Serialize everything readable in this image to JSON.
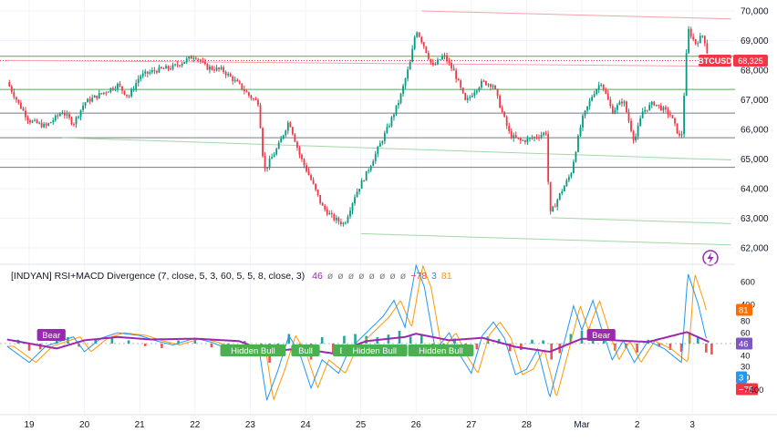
{
  "symbol": "BTCUSD",
  "last_price": "68,325",
  "colors": {
    "up": "#089981",
    "down": "#f23645",
    "grid": "#f0f3fa",
    "hline_green": "#4caf50",
    "hline_gray": "#787b86",
    "rsi_line": "#9c27b0",
    "macd_fast": "#2196f3",
    "macd_slow": "#ff9800",
    "bear_label": "#9c27b0",
    "bull_label": "#4caf50"
  },
  "indicator": {
    "title": "[INDYAN] RSI+MACD Divergence (7, close, 5, 3, 60, 5, 5, 8, close, 3)",
    "values": [
      "46",
      "ø",
      "ø",
      "ø",
      "ø",
      "ø",
      "ø",
      "ø",
      "ø",
      "−78",
      "3",
      "81"
    ],
    "value_colors": [
      "#9c27b0",
      "#787b86",
      "#787b86",
      "#787b86",
      "#787b86",
      "#787b86",
      "#787b86",
      "#787b86",
      "#787b86",
      "#f23645",
      "#2196f3",
      "#ff9800"
    ],
    "scale_labels": [
      "600",
      "400",
      "80",
      "60",
      "40",
      "30",
      "20"
    ],
    "badges": [
      {
        "text": "81",
        "color": "#ff6d00"
      },
      {
        "text": "46",
        "color": "#7e57c2"
      },
      {
        "text": "3",
        "color": "#2196f3"
      },
      {
        "text": "−78",
        "color": "#f23645"
      }
    ],
    "labels": [
      {
        "text": "Bear",
        "t": 0.4,
        "type": "bear"
      },
      {
        "text": "Hidden Bull",
        "t": 4.05,
        "type": "bull"
      },
      {
        "text": "Bull",
        "t": 5.0,
        "type": "bull"
      },
      {
        "text": "Bull",
        "t": 5.75,
        "type": "bull"
      },
      {
        "text": "Hidden Bull",
        "t": 6.25,
        "type": "bull"
      },
      {
        "text": "Hidden Bull",
        "t": 7.45,
        "type": "bull"
      },
      {
        "text": "Bear",
        "t": 10.35,
        "type": "bear"
      }
    ]
  },
  "chart_data": {
    "type": "candlestick",
    "y_ticks": [
      "70,000",
      "69,000",
      "68,000",
      "67,000",
      "66,000",
      "65,000",
      "64,000",
      "63,000",
      "62,000"
    ],
    "ylim": [
      61700,
      70150
    ],
    "x_labels": [
      {
        "t": 0.0,
        "label": "19"
      },
      {
        "t": 1.0,
        "label": "20"
      },
      {
        "t": 2.0,
        "label": "21"
      },
      {
        "t": 3.0,
        "label": "22"
      },
      {
        "t": 4.0,
        "label": "23"
      },
      {
        "t": 5.0,
        "label": "24"
      },
      {
        "t": 6.0,
        "label": "25"
      },
      {
        "t": 7.0,
        "label": "26"
      },
      {
        "t": 8.0,
        "label": "27"
      },
      {
        "t": 9.0,
        "label": "28"
      },
      {
        "t": 10.0,
        "label": "Mar"
      },
      {
        "t": 11.0,
        "label": "2"
      },
      {
        "t": 12.0,
        "label": "3"
      }
    ],
    "price_path": [
      [
        -0.4,
        67600
      ],
      [
        -0.2,
        66900
      ],
      [
        0.0,
        66300
      ],
      [
        0.3,
        66100
      ],
      [
        0.6,
        66600
      ],
      [
        0.8,
        66200
      ],
      [
        1.0,
        66900
      ],
      [
        1.3,
        67200
      ],
      [
        1.6,
        67500
      ],
      [
        1.8,
        67100
      ],
      [
        2.0,
        67800
      ],
      [
        2.3,
        68000
      ],
      [
        2.6,
        68100
      ],
      [
        2.8,
        68300
      ],
      [
        3.0,
        68500
      ],
      [
        3.2,
        68100
      ],
      [
        3.5,
        68000
      ],
      [
        3.8,
        67500
      ],
      [
        4.0,
        67100
      ],
      [
        4.15,
        66900
      ],
      [
        4.25,
        64600
      ],
      [
        4.5,
        65400
      ],
      [
        4.7,
        66300
      ],
      [
        4.9,
        65100
      ],
      [
        5.1,
        64300
      ],
      [
        5.3,
        63400
      ],
      [
        5.5,
        63000
      ],
      [
        5.7,
        62800
      ],
      [
        5.9,
        63800
      ],
      [
        6.1,
        64500
      ],
      [
        6.3,
        65300
      ],
      [
        6.5,
        66100
      ],
      [
        6.7,
        67000
      ],
      [
        6.9,
        68300
      ],
      [
        7.0,
        69400
      ],
      [
        7.15,
        68800
      ],
      [
        7.3,
        68100
      ],
      [
        7.5,
        68500
      ],
      [
        7.7,
        67900
      ],
      [
        7.9,
        66900
      ],
      [
        8.05,
        67300
      ],
      [
        8.2,
        67600
      ],
      [
        8.4,
        67500
      ],
      [
        8.5,
        66900
      ],
      [
        8.7,
        65800
      ],
      [
        8.9,
        65600
      ],
      [
        9.1,
        65700
      ],
      [
        9.35,
        65900
      ],
      [
        9.42,
        63100
      ],
      [
        9.6,
        63800
      ],
      [
        9.8,
        64500
      ],
      [
        10.0,
        66300
      ],
      [
        10.2,
        67200
      ],
      [
        10.35,
        67600
      ],
      [
        10.55,
        66600
      ],
      [
        10.75,
        67000
      ],
      [
        10.95,
        65600
      ],
      [
        11.1,
        66600
      ],
      [
        11.3,
        66900
      ],
      [
        11.6,
        66500
      ],
      [
        11.8,
        65600
      ],
      [
        11.92,
        69400
      ],
      [
        12.05,
        68900
      ],
      [
        12.2,
        69200
      ],
      [
        12.3,
        68325
      ]
    ],
    "horizontal_levels": [
      {
        "price": 68470,
        "color": "green"
      },
      {
        "price": 67350,
        "color": "green"
      },
      {
        "price": 66550,
        "color": "gray"
      },
      {
        "price": 65720,
        "color": "gray"
      },
      {
        "price": 64720,
        "color": "gray"
      }
    ],
    "trend_lines": [
      {
        "t1": 7.1,
        "p1": 70000,
        "t2": 12.7,
        "p2": 69730,
        "color": "red"
      },
      {
        "t1": -0.4,
        "p1": 68330,
        "t2": 12.7,
        "p2": 68130,
        "color": "red"
      },
      {
        "t1": 0.6,
        "p1": 65720,
        "t2": 12.7,
        "p2": 64970,
        "color": "green"
      },
      {
        "t1": 9.45,
        "p1": 63020,
        "t2": 12.7,
        "p2": 62820,
        "color": "green"
      },
      {
        "t1": 6.0,
        "p1": 62480,
        "t2": 12.7,
        "p2": 62100,
        "color": "green"
      }
    ],
    "macd_path": [
      [
        -0.4,
        -20
      ],
      [
        0.0,
        -140
      ],
      [
        0.3,
        -20
      ],
      [
        0.8,
        50
      ],
      [
        1.0,
        -60
      ],
      [
        1.3,
        40
      ],
      [
        1.6,
        80
      ],
      [
        2.0,
        60
      ],
      [
        2.3,
        20
      ],
      [
        2.6,
        -10
      ],
      [
        3.0,
        40
      ],
      [
        3.3,
        10
      ],
      [
        3.6,
        -40
      ],
      [
        4.0,
        -30
      ],
      [
        4.15,
        -20
      ],
      [
        4.3,
        -420
      ],
      [
        4.5,
        -200
      ],
      [
        4.7,
        60
      ],
      [
        4.9,
        -80
      ],
      [
        5.1,
        -330
      ],
      [
        5.3,
        -120
      ],
      [
        5.6,
        -220
      ],
      [
        5.8,
        -40
      ],
      [
        6.0,
        40
      ],
      [
        6.2,
        120
      ],
      [
        6.4,
        200
      ],
      [
        6.6,
        320
      ],
      [
        6.8,
        120
      ],
      [
        7.0,
        580
      ],
      [
        7.15,
        420
      ],
      [
        7.35,
        -50
      ],
      [
        7.6,
        80
      ],
      [
        7.8,
        -90
      ],
      [
        8.0,
        -220
      ],
      [
        8.2,
        60
      ],
      [
        8.4,
        160
      ],
      [
        8.6,
        40
      ],
      [
        8.8,
        -230
      ],
      [
        9.0,
        -190
      ],
      [
        9.2,
        -40
      ],
      [
        9.42,
        -400
      ],
      [
        9.6,
        -120
      ],
      [
        9.85,
        280
      ],
      [
        10.0,
        100
      ],
      [
        10.2,
        320
      ],
      [
        10.35,
        120
      ],
      [
        10.55,
        -120
      ],
      [
        10.75,
        20
      ],
      [
        10.95,
        -140
      ],
      [
        11.2,
        20
      ],
      [
        11.5,
        -40
      ],
      [
        11.8,
        -140
      ],
      [
        11.92,
        520
      ],
      [
        12.1,
        300
      ],
      [
        12.25,
        40
      ]
    ],
    "signal_lag": 0.12,
    "rsi_path": [
      [
        -0.4,
        5
      ],
      [
        0.5,
        -6
      ],
      [
        1.0,
        4
      ],
      [
        1.6,
        8
      ],
      [
        2.2,
        5
      ],
      [
        3.0,
        6
      ],
      [
        3.8,
        3
      ],
      [
        4.3,
        -10
      ],
      [
        4.9,
        -6
      ],
      [
        5.5,
        -12
      ],
      [
        6.1,
        3
      ],
      [
        6.8,
        8
      ],
      [
        7.0,
        12
      ],
      [
        7.6,
        4
      ],
      [
        8.2,
        7
      ],
      [
        8.8,
        -4
      ],
      [
        9.42,
        -10
      ],
      [
        10.0,
        6
      ],
      [
        10.6,
        4
      ],
      [
        11.2,
        2
      ],
      [
        11.9,
        14
      ],
      [
        12.3,
        2
      ]
    ],
    "histogram": [
      {
        "t": -0.2,
        "v": 12
      },
      {
        "t": 0.0,
        "v": -22
      },
      {
        "t": 0.2,
        "v": -18
      },
      {
        "t": 0.5,
        "v": 14
      },
      {
        "t": 0.7,
        "v": 20
      },
      {
        "t": 0.9,
        "v": -10
      },
      {
        "t": 1.2,
        "v": 12
      },
      {
        "t": 1.5,
        "v": 18
      },
      {
        "t": 1.8,
        "v": 10
      },
      {
        "t": 2.1,
        "v": -8
      },
      {
        "t": 2.4,
        "v": -14
      },
      {
        "t": 2.7,
        "v": 10
      },
      {
        "t": 3.0,
        "v": 16
      },
      {
        "t": 3.3,
        "v": -12
      },
      {
        "t": 3.6,
        "v": -18
      },
      {
        "t": 3.9,
        "v": 8
      },
      {
        "t": 4.2,
        "v": -20
      },
      {
        "t": 4.35,
        "v": -60
      },
      {
        "t": 4.5,
        "v": -40
      },
      {
        "t": 4.7,
        "v": 30
      },
      {
        "t": 4.9,
        "v": -30
      },
      {
        "t": 5.1,
        "v": -50
      },
      {
        "t": 5.3,
        "v": 20
      },
      {
        "t": 5.5,
        "v": -30
      },
      {
        "t": 5.7,
        "v": 24
      },
      {
        "t": 5.9,
        "v": 30
      },
      {
        "t": 6.1,
        "v": 24
      },
      {
        "t": 6.3,
        "v": 20
      },
      {
        "t": 6.5,
        "v": 28
      },
      {
        "t": 6.7,
        "v": 40
      },
      {
        "t": 6.9,
        "v": 22
      },
      {
        "t": 7.1,
        "v": 30
      },
      {
        "t": 7.3,
        "v": -40
      },
      {
        "t": 7.5,
        "v": -20
      },
      {
        "t": 7.7,
        "v": 16
      },
      {
        "t": 7.9,
        "v": -30
      },
      {
        "t": 8.1,
        "v": -18
      },
      {
        "t": 8.3,
        "v": 22
      },
      {
        "t": 8.5,
        "v": 14
      },
      {
        "t": 8.7,
        "v": -24
      },
      {
        "t": 8.9,
        "v": -20
      },
      {
        "t": 9.1,
        "v": 12
      },
      {
        "t": 9.3,
        "v": 10
      },
      {
        "t": 9.45,
        "v": -50
      },
      {
        "t": 9.6,
        "v": -30
      },
      {
        "t": 9.8,
        "v": 30
      },
      {
        "t": 10.0,
        "v": 40
      },
      {
        "t": 10.2,
        "v": 28
      },
      {
        "t": 10.4,
        "v": 20
      },
      {
        "t": 10.6,
        "v": -22
      },
      {
        "t": 10.8,
        "v": -14
      },
      {
        "t": 11.0,
        "v": -28
      },
      {
        "t": 11.2,
        "v": 12
      },
      {
        "t": 11.4,
        "v": -10
      },
      {
        "t": 11.6,
        "v": -20
      },
      {
        "t": 11.8,
        "v": -26
      },
      {
        "t": 11.95,
        "v": 30
      },
      {
        "t": 12.1,
        "v": 20
      },
      {
        "t": 12.25,
        "v": -28
      },
      {
        "t": 12.35,
        "v": -34
      }
    ]
  }
}
